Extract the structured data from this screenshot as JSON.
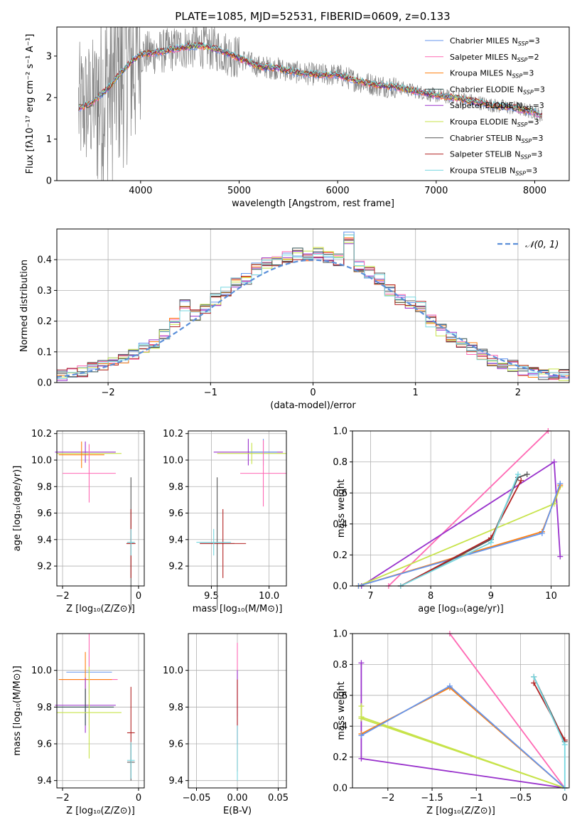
{
  "page_title": "PLATE=1085, MJD=52531, FIBERID=0609, z=0.133",
  "colors": {
    "chabrier_miles": "#6495ed",
    "salpeter_miles": "#ff69b4",
    "kroupa_miles": "#ff7f0e",
    "chabrier_elodie": "#2f4f4f",
    "salpeter_elodie": "#9932cc",
    "kroupa_elodie": "#c7e34a",
    "chabrier_stelib": "#555555",
    "salpeter_stelib": "#b22222",
    "kroupa_stelib": "#76d7e0",
    "data_gray": "#808080",
    "gauss": "#5b8fd9",
    "grid": "#b0b0b0"
  },
  "legend_series": [
    {
      "name": "Chabrier MILES",
      "n": "3",
      "color": "#6495ed"
    },
    {
      "name": "Salpeter MILES",
      "n": "2",
      "color": "#ff69b4"
    },
    {
      "name": "Kroupa MILES",
      "n": "3",
      "color": "#ff7f0e"
    },
    {
      "name": "Chabrier ELODIE",
      "n": "3",
      "color": "#2f4f4f"
    },
    {
      "name": "Salpeter ELODIE",
      "n": "3",
      "color": "#9932cc"
    },
    {
      "name": "Kroupa ELODIE",
      "n": "3",
      "color": "#c7e34a"
    },
    {
      "name": "Chabrier STELIB",
      "n": "3",
      "color": "#555555"
    },
    {
      "name": "Salpeter STELIB",
      "n": "3",
      "color": "#b22222"
    },
    {
      "name": "Kroupa STELIB",
      "n": "3",
      "color": "#76d7e0"
    }
  ],
  "legend_nssp_prefix": "N",
  "legend_nssp_sub": "SSP",
  "gauss_legend": "𝒩(0, 1)",
  "chart_data": [
    {
      "id": "spectrum",
      "type": "line",
      "xlabel": "wavelength [Angstrom, rest frame]",
      "ylabel": "Flux [fλ10⁻¹⁷ erg cm⁻² s⁻¹ A⁻¹]",
      "xlim": [
        3150,
        8350
      ],
      "ylim": [
        0,
        3.7
      ],
      "xticks": [
        4000,
        5000,
        6000,
        7000,
        8000
      ],
      "yticks": [
        0,
        1,
        2,
        3
      ],
      "continuum": {
        "x": [
          3370,
          3500,
          3700,
          3800,
          3900,
          4000,
          4200,
          4400,
          4600,
          4800,
          5000,
          5200,
          5400,
          5600,
          5800,
          6000,
          6200,
          6400,
          6600,
          6800,
          7000,
          7200,
          7400,
          7600,
          7800,
          8000,
          8080
        ],
        "y": [
          1.75,
          1.85,
          2.3,
          2.6,
          2.85,
          3.05,
          3.1,
          3.2,
          3.25,
          3.15,
          2.95,
          2.75,
          2.7,
          2.6,
          2.55,
          2.55,
          2.4,
          2.3,
          2.25,
          2.15,
          2.05,
          2.0,
          1.9,
          1.8,
          1.75,
          1.65,
          1.55
        ]
      }
    },
    {
      "id": "residuals",
      "type": "histogram",
      "xlabel": "(data-model)/error",
      "ylabel": "Normed distribution",
      "xlim": [
        -2.5,
        2.5
      ],
      "ylim": [
        0,
        0.5
      ],
      "xticks": [
        -2,
        -1,
        0,
        1,
        2
      ],
      "yticks": [
        0.0,
        0.1,
        0.2,
        0.3,
        0.4
      ],
      "bin_width": 0.1,
      "bins_start": -2.5,
      "values": [
        0.025,
        0.03,
        0.035,
        0.05,
        0.06,
        0.075,
        0.08,
        0.095,
        0.11,
        0.13,
        0.16,
        0.2,
        0.25,
        0.22,
        0.24,
        0.27,
        0.3,
        0.33,
        0.34,
        0.37,
        0.39,
        0.4,
        0.41,
        0.42,
        0.41,
        0.42,
        0.41,
        0.4,
        0.47,
        0.38,
        0.36,
        0.34,
        0.3,
        0.27,
        0.26,
        0.25,
        0.2,
        0.17,
        0.15,
        0.13,
        0.11,
        0.09,
        0.07,
        0.06,
        0.055,
        0.04,
        0.035,
        0.03,
        0.025,
        0.025
      ]
    },
    {
      "id": "age_z",
      "type": "scatter",
      "xlabel": "Z [log₁₀(Z/Z⊙)]",
      "ylabel": "age  [log₁₀(age/yr)]",
      "xlim": [
        -2.15,
        0.15
      ],
      "ylim": [
        9.05,
        10.22
      ],
      "xticks": [
        -2,
        0
      ],
      "yticks": [
        9.2,
        9.4,
        9.6,
        9.8,
        10.0,
        10.2
      ],
      "points": [
        {
          "x": -1.4,
          "y": 10.06,
          "xerr": 0.8,
          "yerr": 0.08,
          "c": "#9932cc"
        },
        {
          "x": -1.3,
          "y": 10.05,
          "xerr": 0.85,
          "yerr": 0.07,
          "c": "#c7e34a"
        },
        {
          "x": -1.5,
          "y": 10.04,
          "xerr": 0.6,
          "yerr": 0.1,
          "c": "#ff7f0e"
        },
        {
          "x": -1.3,
          "y": 9.9,
          "xerr": 0.7,
          "yerr": 0.22,
          "c": "#ff69b4"
        },
        {
          "x": -0.2,
          "y": 9.37,
          "xerr": 0.1,
          "yerr": 0.5,
          "c": "#555555"
        },
        {
          "x": -0.2,
          "y": 9.37,
          "xerr": 0.12,
          "yerr": 0.26,
          "c": "#b22222"
        },
        {
          "x": -0.2,
          "y": 9.38,
          "xerr": 0.1,
          "yerr": 0.1,
          "c": "#76d7e0"
        }
      ]
    },
    {
      "id": "age_mass",
      "type": "scatter",
      "xlabel": "mass [log₁₀(M/M⊙)]",
      "ylabel": "",
      "xlim": [
        9.3,
        10.15
      ],
      "ylim": [
        9.05,
        10.22
      ],
      "xticks": [
        9.5,
        10.0
      ],
      "yticks": [
        9.2,
        9.4,
        9.6,
        9.8,
        10.0,
        10.2
      ],
      "points": [
        {
          "x": 9.82,
          "y": 10.06,
          "xerr": 0.3,
          "yerr": 0.1,
          "c": "#9932cc"
        },
        {
          "x": 9.85,
          "y": 10.05,
          "xerr": 0.3,
          "yerr": 0.08,
          "c": "#c7e34a"
        },
        {
          "x": 9.95,
          "y": 10.06,
          "xerr": 0.12,
          "yerr": 0.1,
          "c": "#6495ed"
        },
        {
          "x": 9.95,
          "y": 9.9,
          "xerr": 0.2,
          "yerr": 0.25,
          "c": "#ff69b4"
        },
        {
          "x": 9.55,
          "y": 9.37,
          "xerr": 0.15,
          "yerr": 0.5,
          "c": "#555555"
        },
        {
          "x": 9.6,
          "y": 9.37,
          "xerr": 0.2,
          "yerr": 0.26,
          "c": "#b22222"
        },
        {
          "x": 9.52,
          "y": 9.38,
          "xerr": 0.15,
          "yerr": 0.1,
          "c": "#76d7e0"
        }
      ]
    },
    {
      "id": "weight_age",
      "type": "line",
      "xlabel": "age  [log₁₀(age/yr)]",
      "ylabel": "mass weight",
      "xlim": [
        6.7,
        10.3
      ],
      "ylim": [
        0,
        1.0
      ],
      "xticks": [
        7,
        8,
        9,
        10
      ],
      "yticks": [
        0.0,
        0.2,
        0.4,
        0.6,
        0.8,
        1.0
      ],
      "series": [
        {
          "c": "#ff69b4",
          "x": [
            7.3,
            9.95
          ],
          "y": [
            0.0,
            1.0
          ]
        },
        {
          "c": "#9932cc",
          "x": [
            6.85,
            10.05,
            10.15
          ],
          "y": [
            0.0,
            0.8,
            0.19
          ]
        },
        {
          "c": "#c7e34a",
          "x": [
            6.8,
            10.05,
            10.15
          ],
          "y": [
            0.0,
            0.53,
            0.64
          ]
        },
        {
          "c": "#ff7f0e",
          "x": [
            6.8,
            9.85,
            10.15
          ],
          "y": [
            0.0,
            0.35,
            0.65
          ]
        },
        {
          "c": "#6495ed",
          "x": [
            6.8,
            9.85,
            10.15
          ],
          "y": [
            0.0,
            0.34,
            0.66
          ]
        },
        {
          "c": "#555555",
          "x": [
            7.5,
            9.0,
            9.45,
            9.6
          ],
          "y": [
            0.0,
            0.3,
            0.7,
            0.72
          ]
        },
        {
          "c": "#b22222",
          "x": [
            7.5,
            9.0,
            9.5
          ],
          "y": [
            0.0,
            0.31,
            0.68
          ]
        },
        {
          "c": "#76d7e0",
          "x": [
            7.5,
            9.0,
            9.45
          ],
          "y": [
            0.0,
            0.28,
            0.72
          ]
        }
      ]
    },
    {
      "id": "mass_z",
      "type": "scatter",
      "xlabel": "Z [log₁₀(Z/Z⊙)]",
      "ylabel": "mass [log₁₀(M/M⊙)]",
      "xlim": [
        -2.15,
        0.15
      ],
      "ylim": [
        9.36,
        10.2
      ],
      "xticks": [
        -2,
        0
      ],
      "yticks": [
        9.4,
        9.6,
        9.8,
        10.0
      ],
      "points": [
        {
          "x": -1.3,
          "y": 9.99,
          "xerr": 0.6,
          "yerr": 0.12,
          "c": "#6495ed"
        },
        {
          "x": -1.3,
          "y": 9.95,
          "xerr": 0.75,
          "yerr": 0.25,
          "c": "#ff69b4"
        },
        {
          "x": -1.4,
          "y": 9.95,
          "xerr": 0.7,
          "yerr": 0.15,
          "c": "#ff7f0e"
        },
        {
          "x": -1.4,
          "y": 9.81,
          "xerr": 0.8,
          "yerr": 0.15,
          "c": "#9932cc"
        },
        {
          "x": -1.4,
          "y": 9.8,
          "xerr": 0.75,
          "yerr": 0.1,
          "c": "#2f4f4f"
        },
        {
          "x": -1.3,
          "y": 9.77,
          "xerr": 0.85,
          "yerr": 0.25,
          "c": "#c7e34a"
        },
        {
          "x": -0.2,
          "y": 9.66,
          "xerr": 0.1,
          "yerr": 0.25,
          "c": "#b22222"
        },
        {
          "x": -0.2,
          "y": 9.5,
          "xerr": 0.1,
          "yerr": 0.1,
          "c": "#555555"
        },
        {
          "x": -0.2,
          "y": 9.51,
          "xerr": 0.1,
          "yerr": 0.1,
          "c": "#76d7e0"
        }
      ]
    },
    {
      "id": "mass_ebv",
      "type": "scatter",
      "xlabel": "E(B-V)",
      "ylabel": "",
      "xlim": [
        -0.06,
        0.06
      ],
      "ylim": [
        9.36,
        10.2
      ],
      "xticks": [
        -0.05,
        0.0,
        0.05
      ],
      "yticks": [
        9.4,
        9.6,
        9.8,
        10.0
      ],
      "points": [
        {
          "x": 0.0,
          "y": 9.95,
          "xerr": 0.0,
          "yerr": 0.2,
          "c": "#ff69b4"
        },
        {
          "x": 0.0,
          "y": 9.8,
          "xerr": 0.0,
          "yerr": 0.2,
          "c": "#9932cc"
        },
        {
          "x": 0.0,
          "y": 9.7,
          "xerr": 0.0,
          "yerr": 0.25,
          "c": "#b22222"
        },
        {
          "x": 0.0,
          "y": 9.55,
          "xerr": 0.0,
          "yerr": 0.15,
          "c": "#76d7e0"
        }
      ]
    },
    {
      "id": "weight_z",
      "type": "line",
      "xlabel": "Z [log₁₀(Z/Z⊙)]",
      "ylabel": "mass weight",
      "xlim": [
        -2.4,
        0.05
      ],
      "ylim": [
        0,
        1.0
      ],
      "xticks": [
        -2.0,
        -1.5,
        -1.0,
        -0.5,
        0.0
      ],
      "yticks": [
        0.0,
        0.2,
        0.4,
        0.6,
        0.8,
        1.0
      ],
      "series": [
        {
          "c": "#ff69b4",
          "x": [
            -1.3,
            0.0
          ],
          "y": [
            1.0,
            0.0
          ]
        },
        {
          "c": "#9932cc",
          "x": [
            -2.3,
            -2.3,
            0.0
          ],
          "y": [
            0.81,
            0.19,
            0.0
          ]
        },
        {
          "c": "#c7e34a",
          "x": [
            -2.3,
            -2.3,
            0.0,
            -2.3
          ],
          "y": [
            0.53,
            0.45,
            0.0,
            0.46
          ]
        },
        {
          "c": "#ff7f0e",
          "x": [
            -2.3,
            -1.3,
            0.0
          ],
          "y": [
            0.35,
            0.65,
            0.0
          ]
        },
        {
          "c": "#6495ed",
          "x": [
            -2.3,
            -1.3,
            0.0
          ],
          "y": [
            0.34,
            0.66,
            0.0
          ]
        },
        {
          "c": "#555555",
          "x": [
            -0.35,
            0.0
          ],
          "y": [
            0.72,
            0.3
          ]
        },
        {
          "c": "#b22222",
          "x": [
            -0.35,
            0.0
          ],
          "y": [
            0.68,
            0.31
          ]
        },
        {
          "c": "#76d7e0",
          "x": [
            -0.35,
            0.0,
            0.0
          ],
          "y": [
            0.72,
            0.28,
            0.0
          ]
        }
      ]
    }
  ]
}
